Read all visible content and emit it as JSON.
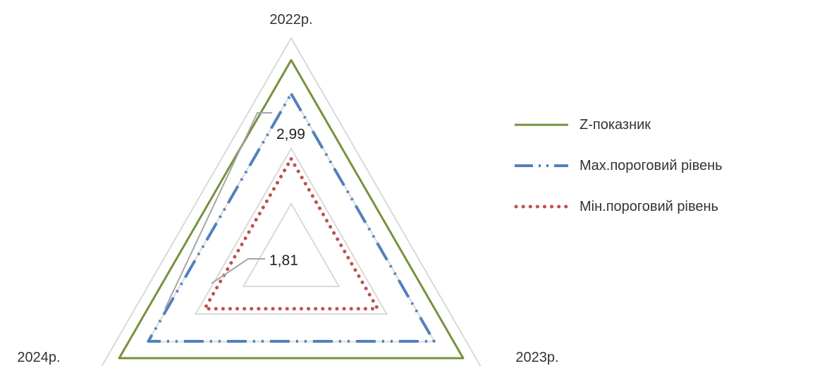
{
  "chart_data": {
    "type": "radar",
    "categories": [
      "2022р.",
      "2023р.",
      "2024р."
    ],
    "axis_range": [
      0,
      4
    ],
    "grid_levels": [
      1,
      2,
      3,
      4
    ],
    "grid": true,
    "legend_position": "right",
    "series": [
      {
        "name": "Z-показник",
        "values": [
          3.6,
          3.6,
          3.6
        ],
        "color": "#76923c",
        "style": "solid"
      },
      {
        "name": "Max.пороговий рівень",
        "values": [
          2.99,
          2.99,
          2.99
        ],
        "color": "#4f81bd",
        "style": "dash-dot"
      },
      {
        "name": "Мін.пороговий рівень",
        "values": [
          1.81,
          1.81,
          1.81
        ],
        "color": "#c0504d",
        "style": "dotted"
      }
    ],
    "data_labels": [
      {
        "text": "2,99",
        "series": "Max.пороговий рівень",
        "category": "2022р."
      },
      {
        "text": "1,81",
        "series": "Мін.пороговий рівень",
        "category": "2022р."
      }
    ]
  }
}
